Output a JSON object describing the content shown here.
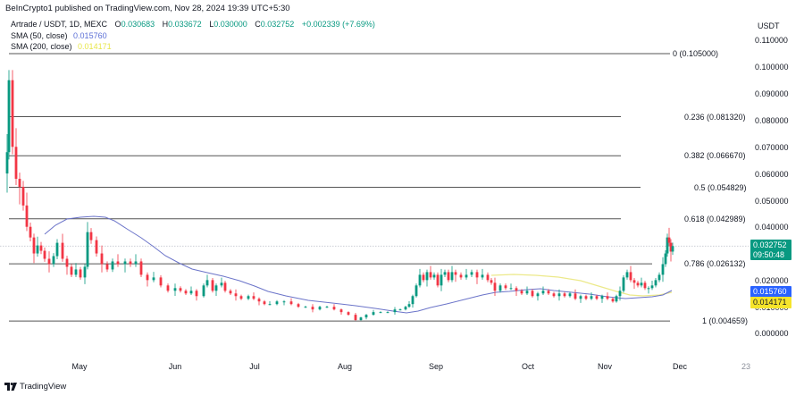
{
  "header": {
    "published": "BeInCrypto1 published on TradingView.com, Nov 28, 2024 19:39 UTC+5:30"
  },
  "legend": {
    "symbol": "Artrade / USDT, 1D, MEXC",
    "open_label": "O",
    "open": "0.030683",
    "high_label": "H",
    "high": "0.033672",
    "low_label": "L",
    "low": "0.030000",
    "close_label": "C",
    "close": "0.032752",
    "change": "+0.002339 (+7.69%)",
    "sma50_label": "SMA (50, close)",
    "sma50_value": "0.015760",
    "sma200_label": "SMA (200, close)",
    "sma200_value": "0.014171"
  },
  "axis": {
    "unit": "USDT",
    "y_ticks": [
      "0.110000",
      "0.100000",
      "0.090000",
      "0.080000",
      "0.070000",
      "0.060000",
      "0.050000",
      "0.040000",
      "0.020000",
      "0.010000",
      "0.000000"
    ],
    "x_ticks": [
      "May",
      "Jun",
      "Jul",
      "Aug",
      "Sep",
      "Oct",
      "Nov",
      "Dec",
      "23"
    ]
  },
  "price_tags": {
    "close_price": "0.032752",
    "countdown": "09:50:48",
    "sma50": "0.015760",
    "sma200": "0.014171"
  },
  "fib_levels": [
    {
      "label": "0 (0.105000)",
      "ratio": 0,
      "price": 0.105
    },
    {
      "label": "0.236 (0.081320)",
      "ratio": 0.236,
      "price": 0.08132
    },
    {
      "label": "0.382 (0.066670)",
      "ratio": 0.382,
      "price": 0.06667
    },
    {
      "label": "0.5 (0.054829)",
      "ratio": 0.5,
      "price": 0.054829
    },
    {
      "label": "0.618 (0.042989)",
      "ratio": 0.618,
      "price": 0.042989
    },
    {
      "label": "0.786 (0.026132)",
      "ratio": 0.786,
      "price": 0.026132
    },
    {
      "label": "1 (0.004659)",
      "ratio": 1,
      "price": 0.004659
    }
  ],
  "footer": {
    "brand": "TradingView"
  },
  "colors": {
    "up": "#089981",
    "down": "#f23645",
    "sma50": "#5b6fd6",
    "sma200": "#ece98a",
    "fib": "#4a4a4a",
    "close_line": "#b2b5be"
  },
  "chart_data": {
    "type": "candlestick",
    "title": "Artrade / USDT, 1D, MEXC",
    "xlabel": "",
    "ylabel": "USDT",
    "ylim": [
      -0.004,
      0.115
    ],
    "x_tick_labels": [
      "May",
      "Jun",
      "Jul",
      "Aug",
      "Sep",
      "Oct",
      "Nov",
      "Dec",
      "23"
    ],
    "y_tick_labels": [
      "0.000000",
      "0.010000",
      "0.020000",
      "0.040000",
      "0.050000",
      "0.060000",
      "0.070000",
      "0.080000",
      "0.090000",
      "0.100000",
      "0.110000"
    ],
    "last": {
      "open": 0.030683,
      "high": 0.033672,
      "low": 0.03,
      "close": 0.032752,
      "change": 0.002339,
      "change_pct": 7.69
    },
    "indicators": [
      {
        "name": "SMA (50, close)",
        "last": 0.01576
      },
      {
        "name": "SMA (200, close)",
        "last": 0.014171
      }
    ],
    "fibonacci_retracement": [
      {
        "level": 0,
        "price": 0.105
      },
      {
        "level": 0.236,
        "price": 0.08132
      },
      {
        "level": 0.382,
        "price": 0.06667
      },
      {
        "level": 0.5,
        "price": 0.054829
      },
      {
        "level": 0.618,
        "price": 0.042989
      },
      {
        "level": 0.786,
        "price": 0.026132
      },
      {
        "level": 1,
        "price": 0.004659
      }
    ],
    "candles_approx": [
      {
        "period": "Apr (early)",
        "o": 0.068,
        "h": 0.105,
        "l": 0.055,
        "c": 0.095
      },
      {
        "period": "Apr",
        "o": 0.095,
        "h": 0.096,
        "l": 0.06,
        "c": 0.068
      },
      {
        "period": "Apr",
        "o": 0.068,
        "h": 0.072,
        "l": 0.05,
        "c": 0.055
      },
      {
        "period": "Apr",
        "o": 0.055,
        "h": 0.06,
        "l": 0.042,
        "c": 0.048
      },
      {
        "period": "Apr",
        "o": 0.048,
        "h": 0.055,
        "l": 0.03,
        "c": 0.04
      },
      {
        "period": "late Apr",
        "o": 0.04,
        "h": 0.045,
        "l": 0.03,
        "c": 0.033
      },
      {
        "period": "late Apr",
        "o": 0.033,
        "h": 0.04,
        "l": 0.025,
        "c": 0.029
      },
      {
        "period": "May",
        "o": 0.029,
        "h": 0.048,
        "l": 0.027,
        "c": 0.04
      },
      {
        "period": "May",
        "o": 0.04,
        "h": 0.042,
        "l": 0.026,
        "c": 0.03
      },
      {
        "period": "mid May",
        "o": 0.03,
        "h": 0.032,
        "l": 0.023,
        "c": 0.026
      },
      {
        "period": "Jun",
        "o": 0.026,
        "h": 0.028,
        "l": 0.015,
        "c": 0.018
      },
      {
        "period": "Jun",
        "o": 0.018,
        "h": 0.024,
        "l": 0.016,
        "c": 0.02
      },
      {
        "period": "Jul",
        "o": 0.014,
        "h": 0.016,
        "l": 0.011,
        "c": 0.012
      },
      {
        "period": "Aug (low)",
        "o": 0.007,
        "h": 0.009,
        "l": 0.0047,
        "c": 0.006
      },
      {
        "period": "late Aug",
        "o": 0.01,
        "h": 0.024,
        "l": 0.009,
        "c": 0.022
      },
      {
        "period": "Sep",
        "o": 0.022,
        "h": 0.027,
        "l": 0.019,
        "c": 0.024
      },
      {
        "period": "mid Sep",
        "o": 0.024,
        "h": 0.027,
        "l": 0.015,
        "c": 0.017
      },
      {
        "period": "Oct",
        "o": 0.016,
        "h": 0.018,
        "l": 0.012,
        "c": 0.014
      },
      {
        "period": "early Nov",
        "o": 0.013,
        "h": 0.015,
        "l": 0.011,
        "c": 0.014
      },
      {
        "period": "mid Nov",
        "o": 0.014,
        "h": 0.026,
        "l": 0.013,
        "c": 0.021
      },
      {
        "period": "late Nov",
        "o": 0.018,
        "h": 0.03,
        "l": 0.017,
        "c": 0.028
      },
      {
        "period": "Nov 27",
        "o": 0.036,
        "h": 0.038,
        "l": 0.029,
        "c": 0.0307
      },
      {
        "period": "Nov 28",
        "o": 0.030683,
        "h": 0.033672,
        "l": 0.03,
        "c": 0.032752
      }
    ],
    "legend_position": "top-left",
    "grid": false
  }
}
